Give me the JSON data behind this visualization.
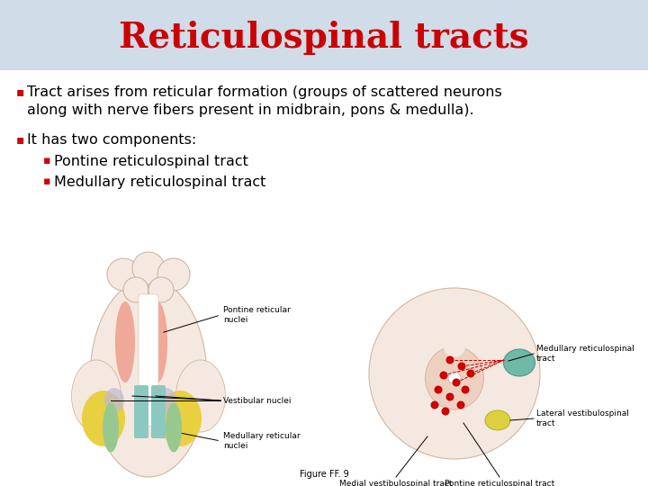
{
  "title": "Reticulospinal tracts",
  "title_color": "#cc0000",
  "title_fontsize": 28,
  "title_font": "serif",
  "header_bg": "#d0dce8",
  "body_bg": "#ffffff",
  "bullet_color": "#cc0000",
  "text_color": "#000000",
  "bullets": [
    {
      "level": 1,
      "text": "Tract arises from reticular formation (groups of scattered neurons\nalong with nerve fibers present in midbrain, pons & medulla)."
    },
    {
      "level": 1,
      "text": "It has two components:"
    },
    {
      "level": 2,
      "text": "Pontine reticulospinal tract"
    },
    {
      "level": 2,
      "text": "Medullary reticulospinal tract"
    }
  ],
  "bullet_fontsize": 11.5,
  "sub_bullet_fontsize": 11.5,
  "figure_caption": "Figure FF. 9"
}
